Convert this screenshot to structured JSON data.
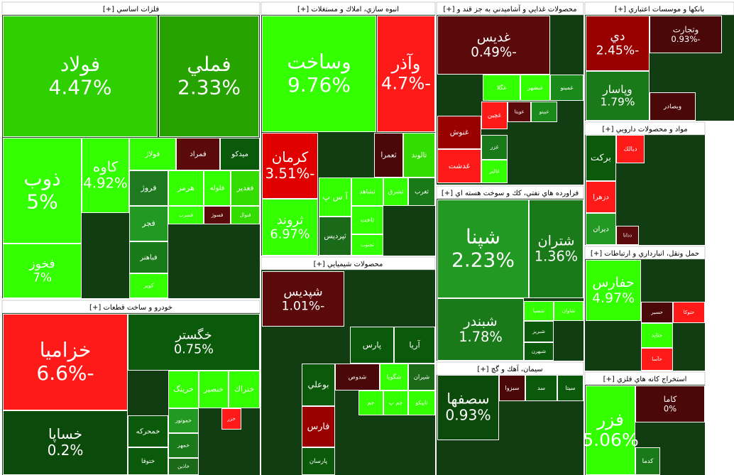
{
  "chart_data": {
    "type": "treemap",
    "sectors": [
      {
        "title": "فلزات اساسي [+]",
        "tiles": [
          {
            "name": "فولاد",
            "value": 4.47,
            "value_label": "4.47%",
            "color": "#2fd000"
          },
          {
            "name": "فملي",
            "value": 2.33,
            "value_label": "2.33%",
            "color": "#27a300"
          },
          {
            "name": "ذوب",
            "value": 5,
            "value_label": "5%",
            "color": "#33ff00"
          },
          {
            "name": "فخوز",
            "value": 7,
            "value_label": "7%",
            "color": "#33ff00"
          },
          {
            "name": "كاوه",
            "value": 4.92,
            "value_label": "4.92%",
            "color": "#33ff00"
          },
          {
            "name": "فولاژ",
            "color": "#33ff00"
          },
          {
            "name": "فمراد",
            "color": "#5a0a0a"
          },
          {
            "name": "ميدكو",
            "color": "#0b5a0b"
          },
          {
            "name": "فروژ",
            "color": "#1f7a1f"
          },
          {
            "name": "هرمز",
            "color": "#33ff00"
          },
          {
            "name": "فلوله",
            "color": "#33ff00"
          },
          {
            "name": "فغدير",
            "color": "#33dd00"
          },
          {
            "name": "فجر",
            "color": "#229922"
          },
          {
            "name": "فسرب",
            "color": "#33ff00"
          },
          {
            "name": "فسوژ",
            "color": "#5a0a0a"
          },
          {
            "name": "فنوال",
            "color": "#33dd00"
          },
          {
            "name": "فباهنر",
            "color": "#1a7a1a"
          },
          {
            "name": "كوير",
            "color": "#33ff00"
          }
        ]
      },
      {
        "title": "انبوه سازي، املاك و مستغلات [+]",
        "tiles": [
          {
            "name": "وساخت",
            "value": 9.76,
            "value_label": "9.76%",
            "color": "#33ff00"
          },
          {
            "name": "وآذر",
            "value": -4.7,
            "value_label": "-4.7%",
            "color": "#ff1a1a"
          },
          {
            "name": "كرمان",
            "value": -3.51,
            "value_label": "-3.51%",
            "color": "#e00000"
          },
          {
            "name": "ثروند",
            "value": 6.97,
            "value_label": "6.97%",
            "color": "#33ff00"
          },
          {
            "name": "ثعمرا",
            "color": "#4a0808"
          },
          {
            "name": "ثالوند",
            "color": "#33dd00"
          },
          {
            "name": "آ س پ",
            "color": "#33ff00"
          },
          {
            "name": "ثشاهد",
            "color": "#33ff00"
          },
          {
            "name": "ثشرق",
            "color": "#33ff00"
          },
          {
            "name": "ثغرب",
            "color": "#1a7a1a"
          },
          {
            "name": "ثاخت",
            "color": "#33ff00"
          },
          {
            "name": "ثپرديس",
            "color": "#1a6a1a"
          },
          {
            "name": "ثجنوب",
            "color": "#33ff00"
          }
        ]
      },
      {
        "title": "محصولات غذايي و آشاميدني به جز قند و [+]",
        "tiles": [
          {
            "name": "غديس",
            "value": -0.49,
            "value_label": "-0.49%",
            "color": "#5a0a0a"
          },
          {
            "name": "غگلا",
            "color": "#33ff00"
          },
          {
            "name": "غبشهر",
            "color": "#33ff00"
          },
          {
            "name": "غمينو",
            "color": "#1a8a1a"
          },
          {
            "name": "غنوش",
            "color": "#990000"
          },
          {
            "name": "غدشت",
            "color": "#ff1a1a"
          },
          {
            "name": "غچين",
            "color": "#ff1a1a"
          },
          {
            "name": "غويتا",
            "color": "#5a0a0a"
          },
          {
            "name": "غبينو",
            "color": "#1a8a1a"
          },
          {
            "name": "غزر",
            "color": "#1a7a1a"
          },
          {
            "name": "غالبر",
            "color": "#33ff00"
          }
        ]
      },
      {
        "title": "بانکها و موسسات اعتباري [+]",
        "tiles": [
          {
            "name": "دي",
            "value": -2.45,
            "value_label": "-2.45%",
            "color": "#990000"
          },
          {
            "name": "وتجارت",
            "value": -0.93,
            "value_label": "-0.93%",
            "color": "#4a0808"
          },
          {
            "name": "وپاسار",
            "value": 1.79,
            "value_label": "1.79%",
            "color": "#1a7a1a"
          },
          {
            "name": "وبصادر",
            "color": "#4a0808"
          }
        ]
      },
      {
        "title": "فراورده هاي نفتي، كك و سوخت هسته اي [+]",
        "tiles": [
          {
            "name": "شپنا",
            "value": 2.23,
            "value_label": "2.23%",
            "color": "#229922"
          },
          {
            "name": "شتران",
            "value": 1.36,
            "value_label": "1.36%",
            "color": "#1a7a1a"
          },
          {
            "name": "شبندر",
            "value": 1.78,
            "value_label": "1.78%",
            "color": "#1a7a1a"
          },
          {
            "name": "شسپا",
            "color": "#33ff00"
          },
          {
            "name": "شاوان",
            "color": "#33ff00"
          },
          {
            "name": "شبريز",
            "color": "#0b5a0b"
          },
          {
            "name": "شبهرن",
            "color": "#0b5a0b"
          }
        ]
      },
      {
        "title": "محصولات شيميايي [+]",
        "tiles": [
          {
            "name": "شپديس",
            "value": -1.01,
            "value_label": "-1.01%",
            "color": "#5a0a0a"
          },
          {
            "name": "پارس",
            "color": "#0b5a0b"
          },
          {
            "name": "آريا",
            "color": "#0b5a0b"
          },
          {
            "name": "بوعلي",
            "color": "#0b5a0b"
          },
          {
            "name": "شدوص",
            "color": "#4a0808"
          },
          {
            "name": "شگويا",
            "color": "#33ff00"
          },
          {
            "name": "شيران",
            "color": "#1a6a1a"
          },
          {
            "name": "فارس",
            "color": "#990000"
          },
          {
            "name": "پارسان",
            "color": "#0b5a0b"
          },
          {
            "name": "جم",
            "color": "#33ff00"
          },
          {
            "name": "جم پ",
            "color": "#33ff00"
          },
          {
            "name": "تاپيكو",
            "color": "#33ff00"
          }
        ]
      },
      {
        "title": "خودرو و ساخت قطعات [+]",
        "tiles": [
          {
            "name": "خزاميا",
            "value": -6.6,
            "value_label": "-6.6%",
            "color": "#ff1a1a"
          },
          {
            "name": "خساپا",
            "value": 0.2,
            "value_label": "0.2%",
            "color": "#0b4a0b"
          },
          {
            "name": "خگستر",
            "value": 0.75,
            "value_label": "0.75%",
            "color": "#0b5a0b"
          },
          {
            "name": "خرينگ",
            "color": "#33ff00"
          },
          {
            "name": "خنصير",
            "color": "#33ff00"
          },
          {
            "name": "ختراك",
            "color": "#33ff00"
          },
          {
            "name": "خمحركه",
            "color": "#0b5a0b"
          },
          {
            "name": "ختوقا",
            "color": "#0b5a0b"
          },
          {
            "name": "خموتور",
            "color": "#229922"
          },
          {
            "name": "خمهر",
            "color": "#1a7a1a"
          },
          {
            "name": "خاذين",
            "color": "#1a6a1a"
          },
          {
            "name": "خزر",
            "color": "#ff1a1a"
          }
        ]
      },
      {
        "title": "سيمان، آهك و گچ [+]",
        "tiles": [
          {
            "name": "سصفها",
            "value": 0.93,
            "value_label": "0.93%",
            "color": "#0b4a0b"
          },
          {
            "name": "سبزوا",
            "color": "#4a0808"
          },
          {
            "name": "سد",
            "color": "#0b5a0b"
          },
          {
            "name": "سيتا",
            "color": "#0b5a0b"
          }
        ]
      },
      {
        "title": "مواد و محصولات دارويي [+]",
        "tiles": [
          {
            "name": "بركت",
            "color": "#0b5a0b"
          },
          {
            "name": "دبالك",
            "color": "#ff1a1a"
          },
          {
            "name": "دزهرا",
            "color": "#ff1a1a"
          },
          {
            "name": "ديران",
            "color": "#229922"
          },
          {
            "name": "ددانا",
            "color": "#5a0a0a"
          }
        ]
      },
      {
        "title": "حمل ونقل، انبارداري و ارتباطات [+]",
        "tiles": [
          {
            "name": "حفارس",
            "value": 4.97,
            "value_label": "4.97%",
            "color": "#33ff00"
          },
          {
            "name": "حسير",
            "color": "#4a0808"
          },
          {
            "name": "حتوكا",
            "color": "#ff1a1a"
          },
          {
            "name": "حتايد",
            "color": "#33ff00"
          },
          {
            "name": "حآسا",
            "color": "#ff1a1a"
          }
        ]
      },
      {
        "title": "استخراج كانه هاي فلزي [+]",
        "tiles": [
          {
            "name": "فزر",
            "value": 5.06,
            "value_label": "5.06%",
            "color": "#33ff00"
          },
          {
            "name": "كاما",
            "value": 0,
            "value_label": "0%",
            "color": "#4a0808"
          },
          {
            "name": "كدما",
            "color": "#1a7a1a"
          }
        ]
      }
    ]
  }
}
